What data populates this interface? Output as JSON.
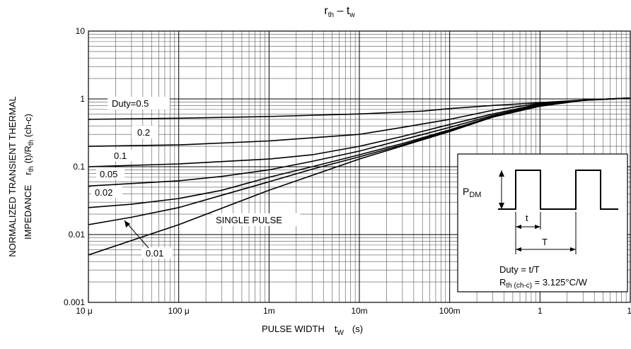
{
  "chart_data": {
    "type": "line",
    "title_main": "r",
    "title_sub1": "th",
    "title_dash": " – t",
    "title_sub2": "w",
    "xlabel_main": "PULSE WIDTH",
    "xlabel_t": "t",
    "xlabel_sub": "W",
    "xlabel_unit": "(s)",
    "ylabel_line1": "NORMALIZED TRANSIENT THERMAL",
    "ylabel_line2a": "IMPEDANCE",
    "ylabel_r": "r",
    "ylabel_th": "th",
    "ylabel_mid": " (t)/R",
    "ylabel_th2": "th",
    "ylabel_end": " (ch-c)",
    "x_scale": "log",
    "y_scale": "log",
    "xlim": [
      1e-05,
      10
    ],
    "ylim": [
      0.001,
      10
    ],
    "grid": true,
    "x_tick_labels": [
      "10 μ",
      "100 μ",
      "1m",
      "10m",
      "100m",
      "1",
      "10"
    ],
    "y_tick_labels": [
      "10",
      "1",
      "0.1",
      "0.01",
      "0.001"
    ],
    "series": [
      {
        "name": "Duty=0.5",
        "x": [
          1e-05,
          0.0001,
          0.001,
          0.01,
          0.05,
          0.1,
          0.3,
          1,
          3,
          10
        ],
        "y": [
          0.5,
          0.52,
          0.55,
          0.6,
          0.66,
          0.72,
          0.8,
          0.88,
          0.96,
          1.03
        ]
      },
      {
        "name": "0.2",
        "x": [
          1e-05,
          0.0001,
          0.001,
          0.01,
          0.03,
          0.1,
          0.3,
          1,
          3,
          10
        ],
        "y": [
          0.2,
          0.21,
          0.24,
          0.3,
          0.38,
          0.5,
          0.68,
          0.86,
          0.96,
          1.03
        ]
      },
      {
        "name": "0.1",
        "x": [
          1e-05,
          0.0001,
          0.001,
          0.003,
          0.01,
          0.03,
          0.1,
          0.3,
          1,
          3,
          10
        ],
        "y": [
          0.1,
          0.11,
          0.13,
          0.15,
          0.2,
          0.28,
          0.42,
          0.6,
          0.84,
          0.96,
          1.03
        ]
      },
      {
        "name": "0.05",
        "x": [
          1e-05,
          0.0001,
          0.0003,
          0.001,
          0.003,
          0.01,
          0.03,
          0.1,
          0.3,
          1,
          3,
          10
        ],
        "y": [
          0.052,
          0.062,
          0.072,
          0.09,
          0.12,
          0.17,
          0.25,
          0.38,
          0.57,
          0.82,
          0.96,
          1.03
        ]
      },
      {
        "name": "0.02",
        "x": [
          1e-05,
          3e-05,
          0.0001,
          0.0003,
          0.001,
          0.003,
          0.01,
          0.03,
          0.1,
          0.3,
          1,
          3,
          10
        ],
        "y": [
          0.025,
          0.028,
          0.034,
          0.045,
          0.07,
          0.1,
          0.15,
          0.22,
          0.35,
          0.55,
          0.8,
          0.95,
          1.03
        ]
      },
      {
        "name": "0.01",
        "x": [
          1e-05,
          3e-05,
          0.0001,
          0.0003,
          0.001,
          0.003,
          0.01,
          0.03,
          0.1,
          0.3,
          1,
          3,
          10
        ],
        "y": [
          0.014,
          0.018,
          0.025,
          0.038,
          0.06,
          0.092,
          0.14,
          0.21,
          0.34,
          0.54,
          0.79,
          0.95,
          1.03
        ]
      },
      {
        "name": "SINGLE PULSE",
        "x": [
          1e-05,
          0.0001,
          0.001,
          0.01,
          0.1,
          0.3,
          1,
          3,
          10
        ],
        "y": [
          0.005,
          0.014,
          0.045,
          0.13,
          0.33,
          0.54,
          0.78,
          0.95,
          1.03
        ]
      }
    ],
    "annotations": [
      "Duty=0.5",
      "0.2",
      "0.1",
      "0.05",
      "0.02",
      "0.01",
      "SINGLE PULSE"
    ]
  },
  "inset": {
    "pdm_p": "P",
    "pdm_sub": "DM",
    "t_label": "t",
    "T_label": "T",
    "duty_text": "Duty = t/T",
    "rth_r": "R",
    "rth_sub": "th (ch-c)",
    "rth_val": " = 3.125°C/W"
  }
}
